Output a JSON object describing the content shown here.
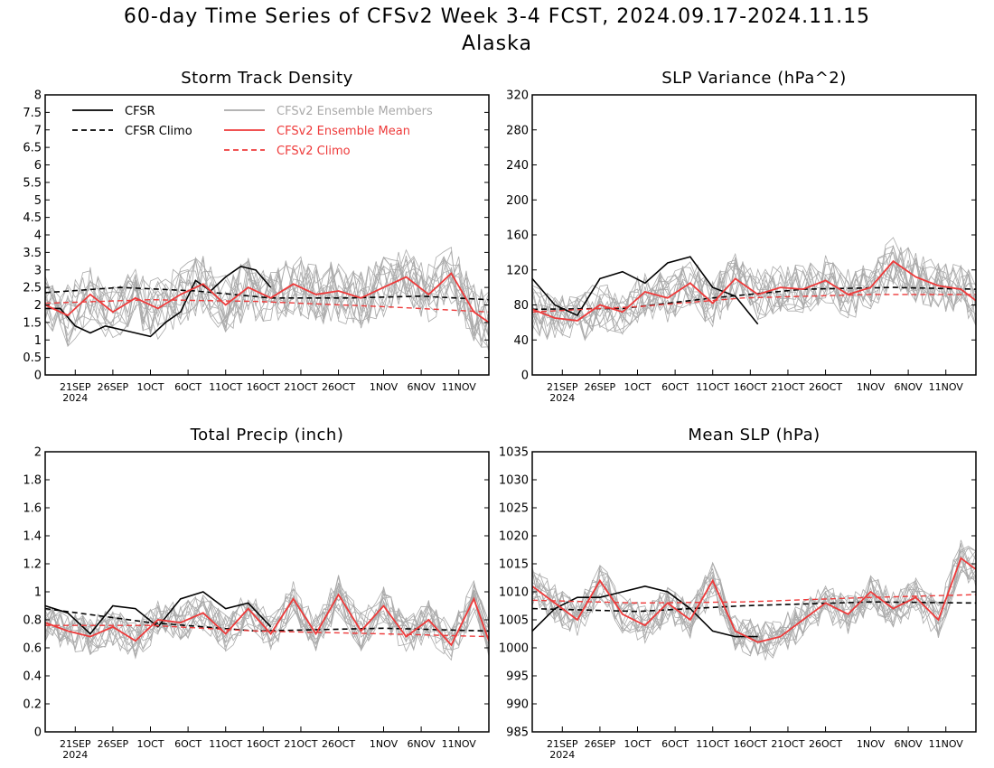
{
  "figure": {
    "title_line1": "60-day Time Series of CFSv2 Week 3-4 FCST, 2024.09.17-2024.11.15",
    "title_line2": "Alaska"
  },
  "legend": {
    "cfsr": "CFSR",
    "cfsr_climo": "CFSR Climo",
    "members": "CFSv2 Ensemble Members",
    "ens_mean": "CFSv2 Ensemble Mean",
    "cfsv2_climo": "CFSv2 Climo"
  },
  "colors": {
    "cfsr": "#000000",
    "members": "#aaaaaa",
    "ens_mean": "#ee3a3a",
    "cfsv2_climo": "#ee3a3a"
  },
  "x_axis": {
    "start": "2024-09-17",
    "end": "2024-11-15",
    "tick_labels": [
      "21SEP",
      "26SEP",
      "1OCT",
      "6OCT",
      "11OCT",
      "16OCT",
      "21OCT",
      "26OCT",
      "1NOV",
      "6NOV",
      "11NOV"
    ],
    "year_label": "2024"
  },
  "chart_data": [
    {
      "type": "line",
      "title": "Storm Track Density",
      "ylim": [
        0,
        8
      ],
      "yticks": [
        "0",
        "0.5",
        "1",
        "1.5",
        "2",
        "2.5",
        "3",
        "3.5",
        "4",
        "4.5",
        "5",
        "5.5",
        "6",
        "6.5",
        "7",
        "7.5",
        "8"
      ],
      "series": [
        {
          "name": "CFSR",
          "x": [
            "2024-09-17",
            "2024-09-19",
            "2024-09-21",
            "2024-09-23",
            "2024-09-25",
            "2024-09-27",
            "2024-09-29",
            "2024-10-01",
            "2024-10-03",
            "2024-10-05",
            "2024-10-07",
            "2024-10-09",
            "2024-10-11",
            "2024-10-13",
            "2024-10-15",
            "2024-10-17"
          ],
          "y": [
            1.9,
            1.9,
            1.4,
            1.2,
            1.4,
            1.3,
            1.2,
            1.1,
            1.5,
            1.8,
            2.7,
            2.4,
            2.8,
            3.1,
            3.0,
            2.5
          ]
        },
        {
          "name": "CFSR Climo",
          "x": [
            "2024-09-17",
            "2024-09-27",
            "2024-10-07",
            "2024-10-17",
            "2024-10-27",
            "2024-11-06",
            "2024-11-15"
          ],
          "y": [
            2.35,
            2.5,
            2.4,
            2.2,
            2.2,
            2.25,
            2.15
          ]
        },
        {
          "name": "CFSv2 Ensemble Mean",
          "x": [
            "2024-09-17",
            "2024-09-20",
            "2024-09-23",
            "2024-09-26",
            "2024-09-29",
            "2024-10-02",
            "2024-10-05",
            "2024-10-08",
            "2024-10-11",
            "2024-10-14",
            "2024-10-17",
            "2024-10-20",
            "2024-10-23",
            "2024-10-26",
            "2024-10-29",
            "2024-11-01",
            "2024-11-04",
            "2024-11-07",
            "2024-11-10",
            "2024-11-13",
            "2024-11-15"
          ],
          "y": [
            2.0,
            1.7,
            2.3,
            1.8,
            2.2,
            1.9,
            2.3,
            2.6,
            2.0,
            2.5,
            2.2,
            2.6,
            2.3,
            2.4,
            2.2,
            2.5,
            2.8,
            2.3,
            2.9,
            1.8,
            1.5
          ]
        },
        {
          "name": "CFSv2 Climo",
          "x": [
            "2024-09-17",
            "2024-10-01",
            "2024-10-15",
            "2024-11-01",
            "2024-11-15"
          ],
          "y": [
            2.05,
            2.15,
            2.1,
            1.95,
            1.8
          ]
        }
      ]
    },
    {
      "type": "line",
      "title": "SLP Variance (hPa^2)",
      "ylim": [
        0,
        320
      ],
      "yticks": [
        "0",
        "40",
        "80",
        "120",
        "160",
        "200",
        "240",
        "280",
        "320"
      ],
      "series": [
        {
          "name": "CFSR",
          "x": [
            "2024-09-17",
            "2024-09-20",
            "2024-09-23",
            "2024-09-26",
            "2024-09-29",
            "2024-10-02",
            "2024-10-05",
            "2024-10-08",
            "2024-10-11",
            "2024-10-14",
            "2024-10-17"
          ],
          "y": [
            110,
            80,
            68,
            110,
            118,
            105,
            128,
            135,
            100,
            90,
            58
          ]
        },
        {
          "name": "CFSR Climo",
          "x": [
            "2024-09-17",
            "2024-09-29",
            "2024-10-11",
            "2024-10-23",
            "2024-11-04",
            "2024-11-15"
          ],
          "y": [
            75,
            76,
            88,
            98,
            100,
            98
          ]
        },
        {
          "name": "CFSv2 Ensemble Mean",
          "x": [
            "2024-09-17",
            "2024-09-20",
            "2024-09-23",
            "2024-09-26",
            "2024-09-29",
            "2024-10-02",
            "2024-10-05",
            "2024-10-08",
            "2024-10-11",
            "2024-10-14",
            "2024-10-17",
            "2024-10-20",
            "2024-10-23",
            "2024-10-26",
            "2024-10-29",
            "2024-11-01",
            "2024-11-04",
            "2024-11-07",
            "2024-11-10",
            "2024-11-13",
            "2024-11-15"
          ],
          "y": [
            75,
            65,
            62,
            80,
            72,
            95,
            88,
            105,
            82,
            110,
            92,
            100,
            98,
            108,
            92,
            100,
            130,
            112,
            102,
            98,
            85
          ]
        },
        {
          "name": "CFSv2 Climo",
          "x": [
            "2024-09-17",
            "2024-10-01",
            "2024-10-15",
            "2024-11-01",
            "2024-11-15"
          ],
          "y": [
            72,
            78,
            88,
            92,
            92
          ]
        }
      ]
    },
    {
      "type": "line",
      "title": "Total Precip (inch)",
      "ylim": [
        0,
        2
      ],
      "yticks": [
        "0",
        "0.2",
        "0.4",
        "0.6",
        "0.8",
        "1",
        "1.2",
        "1.4",
        "1.6",
        "1.8",
        "2"
      ],
      "series": [
        {
          "name": "CFSR",
          "x": [
            "2024-09-17",
            "2024-09-20",
            "2024-09-23",
            "2024-09-26",
            "2024-09-29",
            "2024-10-02",
            "2024-10-05",
            "2024-10-08",
            "2024-10-11",
            "2024-10-14",
            "2024-10-17"
          ],
          "y": [
            0.9,
            0.85,
            0.7,
            0.9,
            0.88,
            0.75,
            0.95,
            1.0,
            0.88,
            0.92,
            0.75
          ]
        },
        {
          "name": "CFSR Climo",
          "x": [
            "2024-09-17",
            "2024-10-01",
            "2024-10-15",
            "2024-11-01",
            "2024-11-15"
          ],
          "y": [
            0.88,
            0.78,
            0.72,
            0.74,
            0.72
          ]
        },
        {
          "name": "CFSv2 Ensemble Mean",
          "x": [
            "2024-09-17",
            "2024-09-20",
            "2024-09-23",
            "2024-09-26",
            "2024-09-29",
            "2024-10-02",
            "2024-10-05",
            "2024-10-08",
            "2024-10-11",
            "2024-10-14",
            "2024-10-17",
            "2024-10-20",
            "2024-10-23",
            "2024-10-26",
            "2024-10-29",
            "2024-11-01",
            "2024-11-04",
            "2024-11-07",
            "2024-11-10",
            "2024-11-13",
            "2024-11-15"
          ],
          "y": [
            0.78,
            0.72,
            0.68,
            0.75,
            0.65,
            0.8,
            0.78,
            0.85,
            0.7,
            0.88,
            0.7,
            0.95,
            0.7,
            0.98,
            0.72,
            0.9,
            0.68,
            0.8,
            0.62,
            0.95,
            0.65
          ]
        },
        {
          "name": "CFSv2 Climo",
          "x": [
            "2024-09-17",
            "2024-10-01",
            "2024-10-15",
            "2024-11-01",
            "2024-11-15"
          ],
          "y": [
            0.76,
            0.76,
            0.72,
            0.7,
            0.68
          ]
        }
      ]
    },
    {
      "type": "line",
      "title": "Mean SLP (hPa)",
      "ylim": [
        985,
        1035
      ],
      "yticks": [
        "985",
        "990",
        "995",
        "1000",
        "1005",
        "1010",
        "1015",
        "1020",
        "1025",
        "1030",
        "1035"
      ],
      "series": [
        {
          "name": "CFSR",
          "x": [
            "2024-09-17",
            "2024-09-20",
            "2024-09-23",
            "2024-09-26",
            "2024-09-29",
            "2024-10-02",
            "2024-10-05",
            "2024-10-08",
            "2024-10-11",
            "2024-10-14",
            "2024-10-17"
          ],
          "y": [
            1003,
            1007,
            1009,
            1009,
            1010,
            1011,
            1010,
            1007,
            1003,
            1002,
            1002
          ]
        },
        {
          "name": "CFSR Climo",
          "x": [
            "2024-09-17",
            "2024-10-01",
            "2024-10-15",
            "2024-11-01",
            "2024-11-15"
          ],
          "y": [
            1007,
            1006.5,
            1007.5,
            1008.2,
            1008
          ]
        },
        {
          "name": "CFSv2 Ensemble Mean",
          "x": [
            "2024-09-17",
            "2024-09-20",
            "2024-09-23",
            "2024-09-26",
            "2024-09-29",
            "2024-10-02",
            "2024-10-05",
            "2024-10-08",
            "2024-10-11",
            "2024-10-14",
            "2024-10-17",
            "2024-10-20",
            "2024-10-23",
            "2024-10-26",
            "2024-10-29",
            "2024-11-01",
            "2024-11-04",
            "2024-11-07",
            "2024-11-10",
            "2024-11-13",
            "2024-11-15"
          ],
          "y": [
            1011,
            1008,
            1005,
            1012,
            1006,
            1004,
            1008,
            1005,
            1012,
            1003,
            1001,
            1002,
            1005,
            1008,
            1006,
            1010,
            1007,
            1009,
            1005,
            1016,
            1014
          ]
        },
        {
          "name": "CFSv2 Climo",
          "x": [
            "2024-09-17",
            "2024-10-01",
            "2024-10-15",
            "2024-11-01",
            "2024-11-15"
          ],
          "y": [
            1008.5,
            1008,
            1008.2,
            1009,
            1009.5
          ]
        }
      ]
    }
  ]
}
